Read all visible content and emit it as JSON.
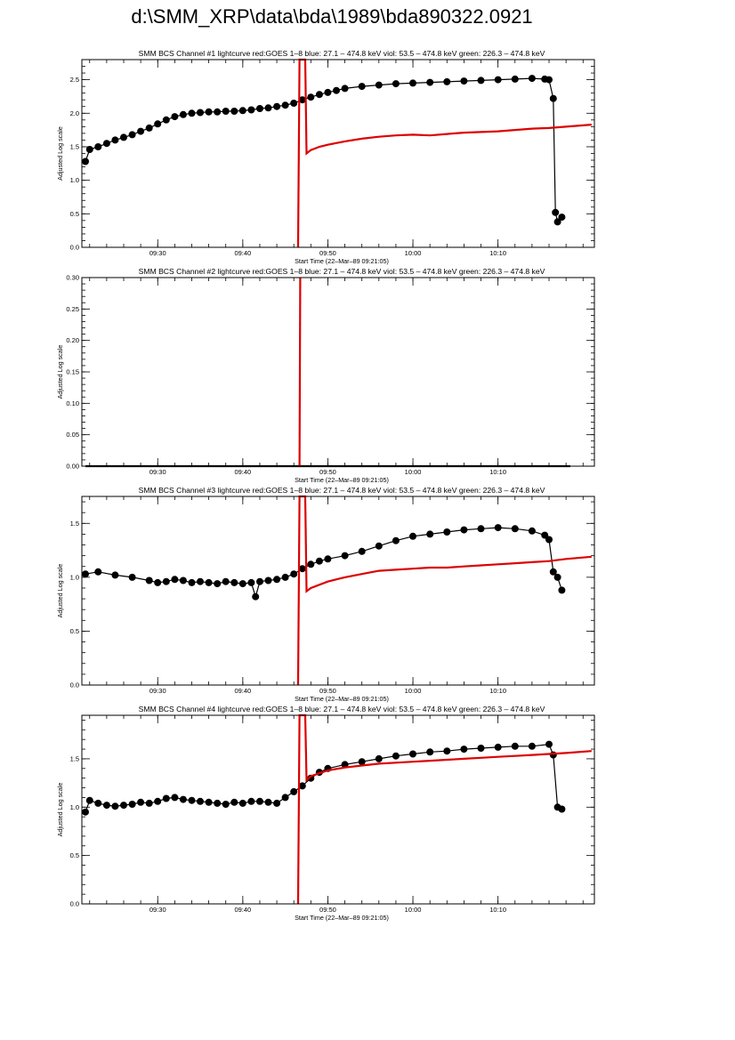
{
  "page": {
    "title": "d:\\SMM_XRP\\data\\bda\\1989\\bda890322.0921"
  },
  "colors": {
    "data": "#000000",
    "goes": "#dd0000",
    "axis": "#000000"
  },
  "chart_data": [
    {
      "type": "line",
      "title": "SMM BCS Channel #1 lightcurve  red:GOES 1–8  blue: 27.1 – 474.8 keV  viol: 53.5 – 474.8 keV  green: 226.3 – 474.8 keV",
      "xlabel": "Start Time (22–Mar–89 09:21:05)",
      "ylabel": "Adjusted Log scale",
      "xlim": [
        "09:21:05",
        "10:21:20"
      ],
      "ylim": [
        0,
        2.8
      ],
      "xticks": [
        "09:30",
        "09:40",
        "09:50",
        "10:00",
        "10:10"
      ],
      "yticks": [
        "0.0",
        "0.5",
        "1.0",
        "1.5",
        "2.0",
        "2.5"
      ],
      "grid": false,
      "series": [
        {
          "color": "#000000",
          "marker": "circle",
          "x": [
            "09:21:30",
            "09:22:00",
            "09:23:00",
            "09:24:00",
            "09:25:00",
            "09:26:00",
            "09:27:00",
            "09:28:00",
            "09:29:00",
            "09:30:00",
            "09:31:00",
            "09:32:00",
            "09:33:00",
            "09:34:00",
            "09:35:00",
            "09:36:00",
            "09:37:00",
            "09:38:00",
            "09:39:00",
            "09:40:00",
            "09:41:00",
            "09:42:00",
            "09:43:00",
            "09:44:00",
            "09:45:00",
            "09:46:00",
            "09:47:00",
            "09:48:00",
            "09:49:00",
            "09:50:00",
            "09:51:00",
            "09:52:00",
            "09:54:00",
            "09:56:00",
            "09:58:00",
            "10:00:00",
            "10:02:00",
            "10:04:00",
            "10:06:00",
            "10:08:00",
            "10:10:00",
            "10:12:00",
            "10:14:00",
            "10:15:30",
            "10:16:00",
            "10:16:30",
            "10:16:45",
            "10:17:00",
            "10:17:30"
          ],
          "values": [
            1.28,
            1.46,
            1.5,
            1.55,
            1.6,
            1.64,
            1.68,
            1.73,
            1.78,
            1.84,
            1.9,
            1.95,
            1.98,
            2.0,
            2.01,
            2.02,
            2.02,
            2.03,
            2.03,
            2.04,
            2.05,
            2.07,
            2.08,
            2.1,
            2.12,
            2.15,
            2.2,
            2.24,
            2.28,
            2.31,
            2.34,
            2.37,
            2.4,
            2.42,
            2.44,
            2.45,
            2.46,
            2.47,
            2.48,
            2.49,
            2.5,
            2.51,
            2.52,
            2.51,
            2.5,
            2.22,
            0.52,
            0.38,
            0.45
          ]
        },
        {
          "color": "#dd0000",
          "x": [
            "09:46:30",
            "09:46:40",
            "09:46:50",
            "09:47:00",
            "09:47:20",
            "09:47:30",
            "09:48:00",
            "09:49:00",
            "09:50:00",
            "09:52:00",
            "09:54:00",
            "09:56:00",
            "09:58:00",
            "10:00:00",
            "10:02:00",
            "10:04:00",
            "10:06:00",
            "10:08:00",
            "10:10:00",
            "10:12:00",
            "10:14:00",
            "10:16:00",
            "10:18:00",
            "10:21:00"
          ],
          "values": [
            0.0,
            2.8,
            2.8,
            2.8,
            2.8,
            1.4,
            1.45,
            1.5,
            1.53,
            1.58,
            1.62,
            1.65,
            1.67,
            1.68,
            1.67,
            1.69,
            1.71,
            1.72,
            1.73,
            1.75,
            1.77,
            1.78,
            1.8,
            1.83
          ]
        }
      ]
    },
    {
      "type": "line",
      "title": "SMM BCS Channel #2 lightcurve  red:GOES 1–8  blue: 27.1 – 474.8 keV  viol: 53.5 – 474.8 keV  green: 226.3 – 474.8 keV",
      "xlabel": "Start Time (22–Mar–89 09:21:05)",
      "ylabel": "Adjusted Log scale",
      "xlim": [
        "09:21:05",
        "10:21:20"
      ],
      "ylim": [
        0,
        0.3
      ],
      "xticks": [
        "09:30",
        "09:40",
        "09:50",
        "10:00",
        "10:10"
      ],
      "yticks": [
        "0.00",
        "0.05",
        "0.10",
        "0.15",
        "0.20",
        "0.25",
        "0.30"
      ],
      "grid": false,
      "series": [
        {
          "color": "#000000",
          "x": [
            "09:21:30",
            "10:18:30"
          ],
          "values": [
            0.0,
            0.0
          ]
        },
        {
          "color": "#dd0000",
          "x": [
            "09:46:40",
            "09:46:45"
          ],
          "values": [
            0.0,
            0.3
          ]
        }
      ]
    },
    {
      "type": "line",
      "title": "SMM BCS Channel #3 lightcurve  red:GOES 1–8  blue: 27.1 – 474.8 keV  viol: 53.5 – 474.8 keV  green: 226.3 – 474.8 keV",
      "xlabel": "Start Time (22–Mar–89 09:21:05)",
      "ylabel": "Adjusted Log scale",
      "xlim": [
        "09:21:05",
        "10:21:20"
      ],
      "ylim": [
        0,
        1.75
      ],
      "xticks": [
        "09:30",
        "09:40",
        "09:50",
        "10:00",
        "10:10"
      ],
      "yticks": [
        "0.0",
        "0.5",
        "1.0",
        "1.5"
      ],
      "grid": false,
      "series": [
        {
          "color": "#000000",
          "marker": "circle",
          "x": [
            "09:21:30",
            "09:23:00",
            "09:25:00",
            "09:27:00",
            "09:29:00",
            "09:30:00",
            "09:31:00",
            "09:32:00",
            "09:33:00",
            "09:34:00",
            "09:35:00",
            "09:36:00",
            "09:37:00",
            "09:38:00",
            "09:39:00",
            "09:40:00",
            "09:41:00",
            "09:41:30",
            "09:42:00",
            "09:43:00",
            "09:44:00",
            "09:45:00",
            "09:46:00",
            "09:47:00",
            "09:48:00",
            "09:49:00",
            "09:50:00",
            "09:52:00",
            "09:54:00",
            "09:56:00",
            "09:58:00",
            "10:00:00",
            "10:02:00",
            "10:04:00",
            "10:06:00",
            "10:08:00",
            "10:10:00",
            "10:12:00",
            "10:14:00",
            "10:15:30",
            "10:16:00",
            "10:16:30",
            "10:17:00",
            "10:17:30"
          ],
          "values": [
            1.03,
            1.05,
            1.02,
            1.0,
            0.97,
            0.95,
            0.96,
            0.98,
            0.97,
            0.95,
            0.96,
            0.95,
            0.94,
            0.96,
            0.95,
            0.94,
            0.95,
            0.82,
            0.96,
            0.97,
            0.98,
            1.0,
            1.03,
            1.08,
            1.12,
            1.15,
            1.17,
            1.2,
            1.24,
            1.29,
            1.34,
            1.38,
            1.4,
            1.42,
            1.44,
            1.45,
            1.46,
            1.45,
            1.43,
            1.39,
            1.35,
            1.05,
            1.0,
            0.88
          ]
        },
        {
          "color": "#dd0000",
          "x": [
            "09:46:30",
            "09:46:40",
            "09:46:50",
            "09:47:00",
            "09:47:20",
            "09:47:30",
            "09:48:00",
            "09:49:00",
            "09:50:00",
            "09:52:00",
            "09:54:00",
            "09:56:00",
            "09:58:00",
            "10:00:00",
            "10:02:00",
            "10:04:00",
            "10:06:00",
            "10:08:00",
            "10:10:00",
            "10:12:00",
            "10:14:00",
            "10:16:00",
            "10:18:00",
            "10:21:00"
          ],
          "values": [
            0.0,
            1.75,
            1.75,
            1.75,
            1.75,
            0.87,
            0.9,
            0.93,
            0.96,
            1.0,
            1.03,
            1.06,
            1.07,
            1.08,
            1.09,
            1.09,
            1.1,
            1.11,
            1.12,
            1.13,
            1.14,
            1.15,
            1.17,
            1.19
          ]
        }
      ]
    },
    {
      "type": "line",
      "title": "SMM BCS Channel #4 lightcurve  red:GOES 1–8  blue: 27.1 – 474.8 keV  viol: 53.5 – 474.8 keV  green: 226.3 – 474.8 keV",
      "xlabel": "Start Time (22–Mar–89 09:21:05)",
      "ylabel": "Adjusted Log scale",
      "xlim": [
        "09:21:05",
        "10:21:20"
      ],
      "ylim": [
        0,
        1.95
      ],
      "xticks": [
        "09:30",
        "09:40",
        "09:50",
        "10:00",
        "10:10"
      ],
      "yticks": [
        "0.0",
        "0.5",
        "1.0",
        "1.5"
      ],
      "grid": false,
      "series": [
        {
          "color": "#000000",
          "marker": "circle",
          "x": [
            "09:21:30",
            "09:22:00",
            "09:23:00",
            "09:24:00",
            "09:25:00",
            "09:26:00",
            "09:27:00",
            "09:28:00",
            "09:29:00",
            "09:30:00",
            "09:31:00",
            "09:32:00",
            "09:33:00",
            "09:34:00",
            "09:35:00",
            "09:36:00",
            "09:37:00",
            "09:38:00",
            "09:39:00",
            "09:40:00",
            "09:41:00",
            "09:42:00",
            "09:43:00",
            "09:44:00",
            "09:45:00",
            "09:46:00",
            "09:47:00",
            "09:48:00",
            "09:49:00",
            "09:50:00",
            "09:52:00",
            "09:54:00",
            "09:56:00",
            "09:58:00",
            "10:00:00",
            "10:02:00",
            "10:04:00",
            "10:06:00",
            "10:08:00",
            "10:10:00",
            "10:12:00",
            "10:14:00",
            "10:16:00",
            "10:16:30",
            "10:17:00",
            "10:17:30"
          ],
          "values": [
            0.95,
            1.07,
            1.04,
            1.02,
            1.01,
            1.02,
            1.03,
            1.05,
            1.04,
            1.06,
            1.09,
            1.1,
            1.08,
            1.07,
            1.06,
            1.05,
            1.04,
            1.03,
            1.05,
            1.04,
            1.06,
            1.06,
            1.05,
            1.04,
            1.1,
            1.16,
            1.22,
            1.3,
            1.36,
            1.4,
            1.44,
            1.47,
            1.5,
            1.53,
            1.55,
            1.57,
            1.58,
            1.6,
            1.61,
            1.62,
            1.63,
            1.63,
            1.65,
            1.54,
            1.0,
            0.98
          ]
        },
        {
          "color": "#dd0000",
          "x": [
            "09:46:30",
            "09:46:40",
            "09:46:50",
            "09:47:00",
            "09:47:20",
            "09:47:30",
            "09:48:00",
            "09:49:00",
            "09:50:00",
            "09:52:00",
            "09:54:00",
            "09:56:00",
            "09:58:00",
            "10:00:00",
            "10:02:00",
            "10:04:00",
            "10:06:00",
            "10:08:00",
            "10:10:00",
            "10:12:00",
            "10:14:00",
            "10:16:00",
            "10:18:00",
            "10:21:00"
          ],
          "values": [
            0.0,
            1.95,
            1.95,
            1.95,
            1.95,
            1.28,
            1.32,
            1.35,
            1.38,
            1.41,
            1.43,
            1.45,
            1.46,
            1.47,
            1.48,
            1.49,
            1.5,
            1.51,
            1.52,
            1.53,
            1.54,
            1.55,
            1.56,
            1.58
          ]
        }
      ]
    }
  ]
}
